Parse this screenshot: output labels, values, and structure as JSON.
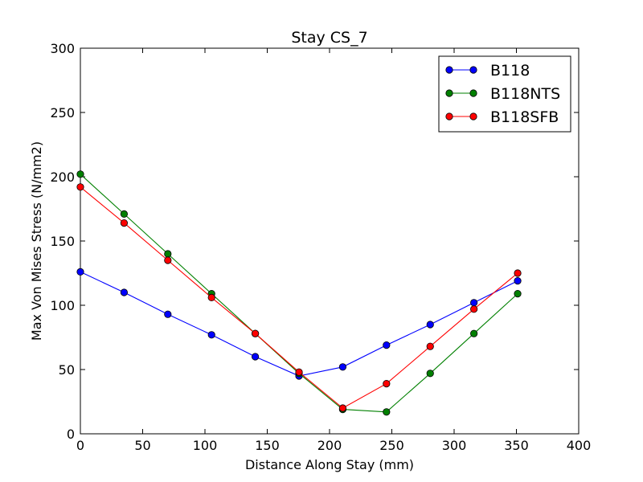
{
  "chart_data": {
    "type": "line",
    "title": "Stay CS_7",
    "xlabel": "Distance Along Stay (mm)",
    "ylabel": "Max Von Mises Stress (N/mm2)",
    "xlim": [
      0,
      400
    ],
    "ylim": [
      0,
      300
    ],
    "xticks": [
      0,
      50,
      100,
      150,
      200,
      250,
      300,
      350,
      400
    ],
    "yticks": [
      0,
      50,
      100,
      150,
      200,
      250,
      300
    ],
    "x_tick_labels": [
      "0",
      "50",
      "100",
      "150",
      "200",
      "250",
      "300",
      "350",
      "400"
    ],
    "y_tick_labels": [
      "0",
      "50",
      "100",
      "150",
      "200",
      "250",
      "300"
    ],
    "grid": false,
    "legend_position": "top-right",
    "x": [
      0,
      35.1,
      70.2,
      105.3,
      140.4,
      175.5,
      210.6,
      245.7,
      280.8,
      315.9,
      351
    ],
    "series": [
      {
        "name": "B118",
        "color": "#0000ff",
        "values": [
          126,
          110,
          93,
          77,
          60,
          45,
          52,
          69,
          85,
          102,
          119
        ]
      },
      {
        "name": "B118NTS",
        "color": "#008000",
        "values": [
          202,
          171,
          140,
          109,
          78,
          47,
          19,
          17,
          47,
          78,
          109
        ]
      },
      {
        "name": "B118SFB",
        "color": "#ff0000",
        "values": [
          192,
          164,
          135,
          106,
          78,
          48,
          20,
          39,
          68,
          97,
          125
        ]
      }
    ]
  }
}
